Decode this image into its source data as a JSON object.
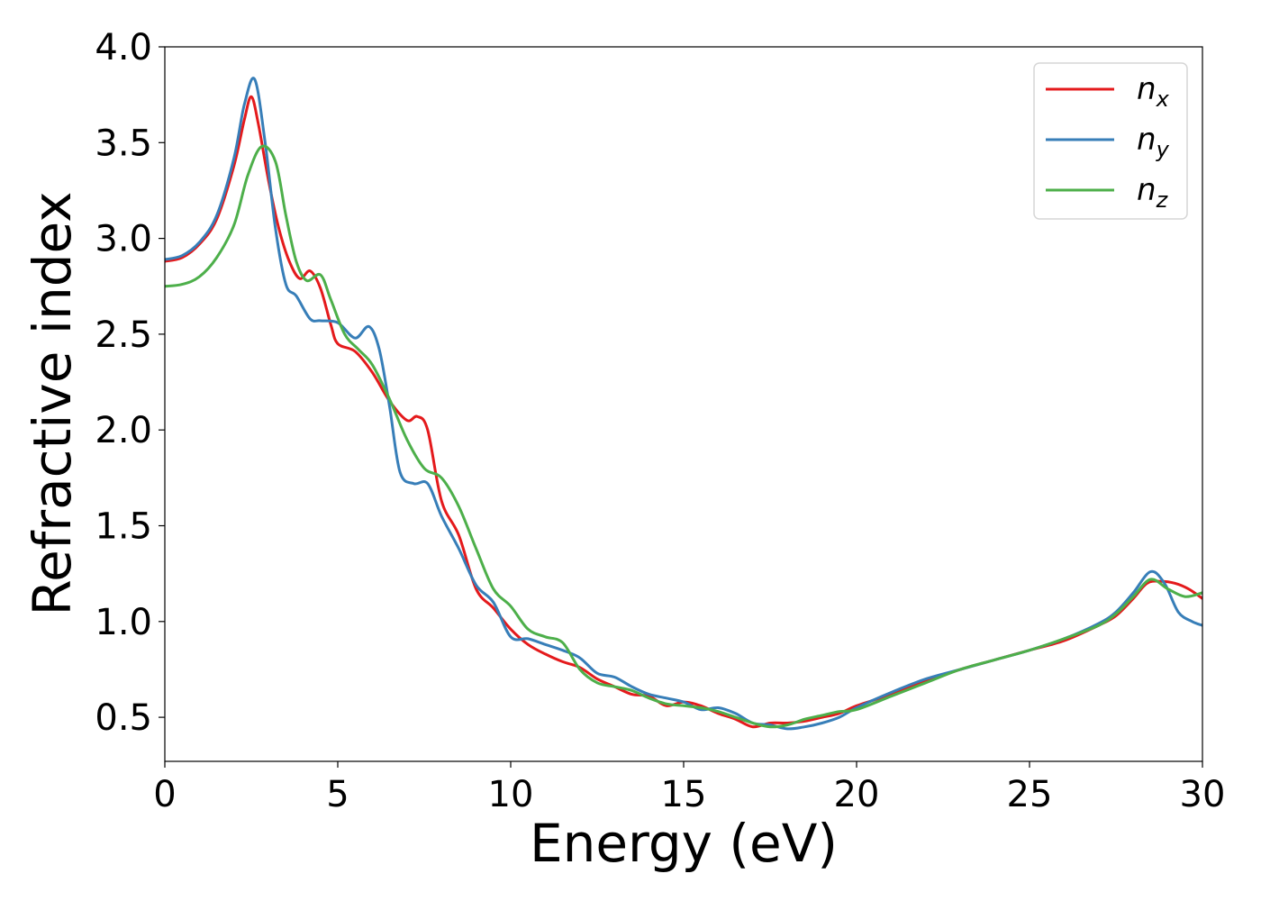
{
  "chart_data": {
    "type": "line",
    "title": "",
    "xlabel": "Energy (eV)",
    "ylabel": "Refractive index",
    "xlim": [
      0,
      30
    ],
    "ylim": [
      0.27,
      4.0
    ],
    "xticks": [
      0,
      5,
      10,
      15,
      20,
      25,
      30
    ],
    "yticks": [
      0.5,
      1.0,
      1.5,
      2.0,
      2.5,
      3.0,
      3.5,
      4.0
    ],
    "grid": false,
    "legend_position": "top-right",
    "series": [
      {
        "name": "n",
        "subscript": "x",
        "color": "#e41a1c",
        "points": [
          [
            0,
            2.88
          ],
          [
            0.5,
            2.9
          ],
          [
            1.0,
            2.97
          ],
          [
            1.5,
            3.1
          ],
          [
            2.0,
            3.38
          ],
          [
            2.3,
            3.62
          ],
          [
            2.5,
            3.74
          ],
          [
            2.7,
            3.6
          ],
          [
            3.0,
            3.3
          ],
          [
            3.3,
            3.05
          ],
          [
            3.6,
            2.88
          ],
          [
            3.9,
            2.79
          ],
          [
            4.2,
            2.83
          ],
          [
            4.5,
            2.74
          ],
          [
            4.8,
            2.55
          ],
          [
            5.0,
            2.45
          ],
          [
            5.5,
            2.41
          ],
          [
            6.0,
            2.3
          ],
          [
            6.5,
            2.15
          ],
          [
            7.0,
            2.05
          ],
          [
            7.3,
            2.07
          ],
          [
            7.6,
            2.0
          ],
          [
            8.0,
            1.63
          ],
          [
            8.5,
            1.45
          ],
          [
            9.0,
            1.17
          ],
          [
            9.5,
            1.07
          ],
          [
            10.0,
            0.96
          ],
          [
            10.5,
            0.88
          ],
          [
            11.0,
            0.83
          ],
          [
            11.5,
            0.79
          ],
          [
            12.0,
            0.76
          ],
          [
            12.5,
            0.7
          ],
          [
            13.0,
            0.66
          ],
          [
            13.5,
            0.62
          ],
          [
            14.0,
            0.61
          ],
          [
            14.5,
            0.56
          ],
          [
            15.0,
            0.58
          ],
          [
            15.5,
            0.56
          ],
          [
            16.0,
            0.52
          ],
          [
            16.5,
            0.49
          ],
          [
            17.0,
            0.45
          ],
          [
            17.5,
            0.47
          ],
          [
            18.0,
            0.47
          ],
          [
            18.5,
            0.48
          ],
          [
            19.0,
            0.5
          ],
          [
            19.5,
            0.52
          ],
          [
            20.0,
            0.56
          ],
          [
            21.0,
            0.62
          ],
          [
            22.0,
            0.69
          ],
          [
            23.0,
            0.75
          ],
          [
            24.0,
            0.8
          ],
          [
            25.0,
            0.85
          ],
          [
            26.0,
            0.9
          ],
          [
            27.0,
            0.98
          ],
          [
            27.5,
            1.03
          ],
          [
            28.0,
            1.12
          ],
          [
            28.4,
            1.2
          ],
          [
            28.8,
            1.21
          ],
          [
            29.2,
            1.2
          ],
          [
            29.6,
            1.17
          ],
          [
            30.0,
            1.12
          ]
        ]
      },
      {
        "name": "n",
        "subscript": "y",
        "color": "#377eb8",
        "points": [
          [
            0,
            2.89
          ],
          [
            0.5,
            2.91
          ],
          [
            1.0,
            2.98
          ],
          [
            1.5,
            3.12
          ],
          [
            2.0,
            3.42
          ],
          [
            2.3,
            3.7
          ],
          [
            2.6,
            3.83
          ],
          [
            2.9,
            3.5
          ],
          [
            3.2,
            3.05
          ],
          [
            3.5,
            2.76
          ],
          [
            3.8,
            2.7
          ],
          [
            4.2,
            2.58
          ],
          [
            4.5,
            2.57
          ],
          [
            5.0,
            2.56
          ],
          [
            5.5,
            2.48
          ],
          [
            5.9,
            2.54
          ],
          [
            6.2,
            2.42
          ],
          [
            6.5,
            2.12
          ],
          [
            6.8,
            1.78
          ],
          [
            7.2,
            1.72
          ],
          [
            7.6,
            1.72
          ],
          [
            8.0,
            1.55
          ],
          [
            8.5,
            1.38
          ],
          [
            9.0,
            1.19
          ],
          [
            9.5,
            1.1
          ],
          [
            10.0,
            0.92
          ],
          [
            10.5,
            0.91
          ],
          [
            11.0,
            0.88
          ],
          [
            11.5,
            0.85
          ],
          [
            12.0,
            0.81
          ],
          [
            12.5,
            0.73
          ],
          [
            13.0,
            0.71
          ],
          [
            13.5,
            0.66
          ],
          [
            14.0,
            0.62
          ],
          [
            14.5,
            0.6
          ],
          [
            15.0,
            0.58
          ],
          [
            15.5,
            0.54
          ],
          [
            16.0,
            0.55
          ],
          [
            16.5,
            0.52
          ],
          [
            17.0,
            0.47
          ],
          [
            17.5,
            0.46
          ],
          [
            18.0,
            0.44
          ],
          [
            18.5,
            0.45
          ],
          [
            19.0,
            0.47
          ],
          [
            19.5,
            0.5
          ],
          [
            20.0,
            0.55
          ],
          [
            21.0,
            0.63
          ],
          [
            22.0,
            0.7
          ],
          [
            23.0,
            0.75
          ],
          [
            24.0,
            0.8
          ],
          [
            25.0,
            0.85
          ],
          [
            26.0,
            0.91
          ],
          [
            27.0,
            0.99
          ],
          [
            27.5,
            1.05
          ],
          [
            28.0,
            1.15
          ],
          [
            28.5,
            1.26
          ],
          [
            28.9,
            1.2
          ],
          [
            29.3,
            1.05
          ],
          [
            29.7,
            1.0
          ],
          [
            30.0,
            0.98
          ]
        ]
      },
      {
        "name": "n",
        "subscript": "z",
        "color": "#4daf4a",
        "points": [
          [
            0,
            2.75
          ],
          [
            0.5,
            2.76
          ],
          [
            1.0,
            2.8
          ],
          [
            1.5,
            2.9
          ],
          [
            2.0,
            3.07
          ],
          [
            2.4,
            3.33
          ],
          [
            2.8,
            3.48
          ],
          [
            3.2,
            3.4
          ],
          [
            3.5,
            3.12
          ],
          [
            3.8,
            2.88
          ],
          [
            4.1,
            2.78
          ],
          [
            4.5,
            2.81
          ],
          [
            4.8,
            2.68
          ],
          [
            5.2,
            2.5
          ],
          [
            5.6,
            2.42
          ],
          [
            6.0,
            2.34
          ],
          [
            6.5,
            2.16
          ],
          [
            7.0,
            1.95
          ],
          [
            7.5,
            1.8
          ],
          [
            8.0,
            1.75
          ],
          [
            8.5,
            1.6
          ],
          [
            9.0,
            1.38
          ],
          [
            9.5,
            1.17
          ],
          [
            10.0,
            1.08
          ],
          [
            10.5,
            0.96
          ],
          [
            11.0,
            0.92
          ],
          [
            11.5,
            0.89
          ],
          [
            12.0,
            0.75
          ],
          [
            12.5,
            0.68
          ],
          [
            13.0,
            0.66
          ],
          [
            13.5,
            0.64
          ],
          [
            14.0,
            0.6
          ],
          [
            14.5,
            0.57
          ],
          [
            15.0,
            0.56
          ],
          [
            15.5,
            0.55
          ],
          [
            16.0,
            0.53
          ],
          [
            16.5,
            0.5
          ],
          [
            17.0,
            0.47
          ],
          [
            17.5,
            0.45
          ],
          [
            18.0,
            0.46
          ],
          [
            18.5,
            0.49
          ],
          [
            19.0,
            0.51
          ],
          [
            19.5,
            0.53
          ],
          [
            20.0,
            0.54
          ],
          [
            21.0,
            0.61
          ],
          [
            22.0,
            0.68
          ],
          [
            23.0,
            0.75
          ],
          [
            24.0,
            0.8
          ],
          [
            25.0,
            0.85
          ],
          [
            26.0,
            0.91
          ],
          [
            27.0,
            0.98
          ],
          [
            27.5,
            1.04
          ],
          [
            28.0,
            1.13
          ],
          [
            28.5,
            1.22
          ],
          [
            29.0,
            1.17
          ],
          [
            29.5,
            1.13
          ],
          [
            30.0,
            1.15
          ]
        ]
      }
    ]
  }
}
